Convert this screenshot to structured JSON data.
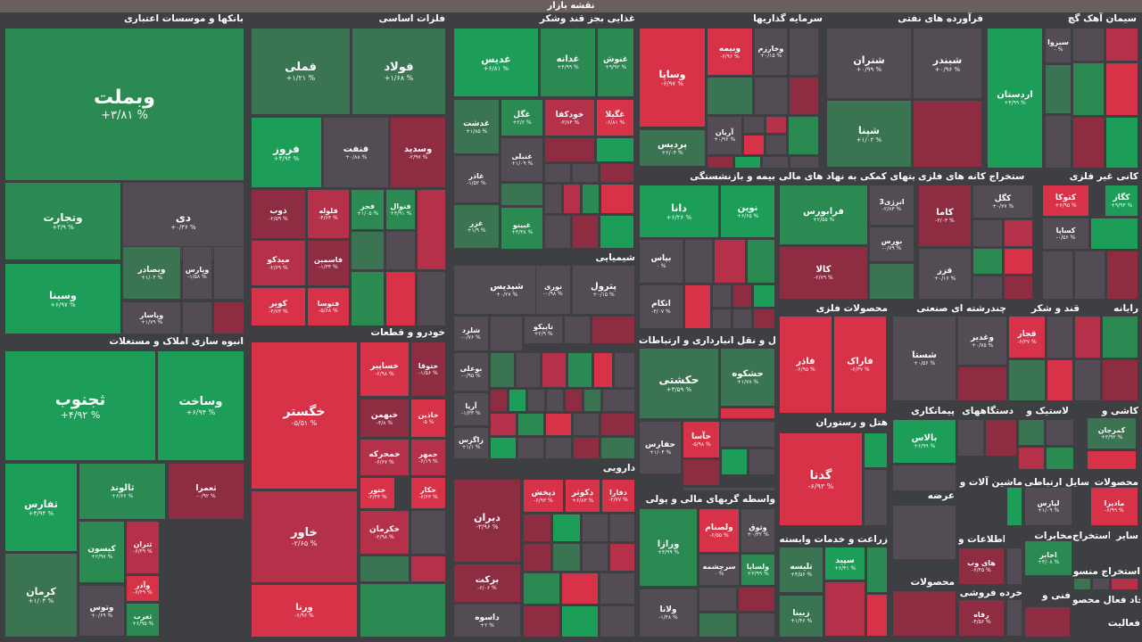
{
  "title": "نقشه بازار",
  "sections": {
    "banks": "بانکها و موسسات اعتباری",
    "metals": "فلزات اساسی",
    "food": "غذایی بجز قند وشکر",
    "invest": "سرمایه گذاریها",
    "oil": "فرآورده های نفتی",
    "cement": "سیمان آهک گچ",
    "chem": "شیمیایی",
    "insurance": "بیمه و بازنشستگی",
    "holding": "فعالیتهای کمکی به نهاد های مالی",
    "mining": "استخراج کانه های فلزی",
    "nonmetal": "کانی غیر فلزی",
    "realestate": "انبوه سازی املاک و مستغلات",
    "auto": "خودرو و قطعات",
    "transport": "حمل و نقل انبارداری و ارتباطات",
    "metalprod": "محصولات فلزی",
    "multi": "چندرشته ای صنعتی",
    "sugar": "قند و شکر",
    "computer": "رایانه",
    "hotel": "هتل و رستوران",
    "contractors": "پیمانکاری",
    "devices": "دستگاههای",
    "rubber": "لاستیک و",
    "tiles": "کاشی و",
    "pharma": "دارویی",
    "finance": "واسطه گریهای مالی و پولی",
    "agri": "زراعت و خدمات وابسته",
    "supply": "عرضه",
    "machinery": "ماشین آلات و",
    "telecom": "وسایل ارتباطی",
    "products": "محصولات",
    "info": "اطلاعات و",
    "communications": "مخابرات",
    "extraction": "استخراج",
    "other": "سایر",
    "retail": "خرده فروشی",
    "technical": "فنی و",
    "prods2": "محصولات",
    "active": "فعال",
    "extract2": "استخراج منسو",
    "active2": "جاد فعال محصو",
    "active3": "فعالیت",
    "extract3": "استخرا"
  },
  "tiles": {
    "vbmellat": {
      "n": "وبملت",
      "v": "+۳/۸۱ %"
    },
    "vtejarat": {
      "n": "وتجارت",
      "v": "+۳/۹ %"
    },
    "di": {
      "n": "دی",
      "v": "+۰/۳۶ %"
    },
    "vsina": {
      "n": "وسینا",
      "v": "+۶/۹۷ %"
    },
    "vbsader": {
      "n": "وبصادر",
      "v": "+۱/۰۴ %"
    },
    "vpars": {
      "n": "وپارس",
      "v": "-۱/۵۸ %"
    },
    "vpasar": {
      "n": "وپاسار",
      "v": "+۱/۷۹ %"
    },
    "fameli": {
      "n": "فملی",
      "v": "+۱/۲۱ %"
    },
    "foolad": {
      "n": "فولاد",
      "v": "+۱/۶۸ %"
    },
    "firooz": {
      "n": "فروز",
      "v": "+۴/۹۴ %"
    },
    "fnaft": {
      "n": "فنفت",
      "v": "+۰/۸۸ %"
    },
    "vsadid": {
      "n": "وسدید",
      "v": "-۲/۹۷ %"
    },
    "zob": {
      "n": "ذوب",
      "v": "-۲/۵۹ %"
    },
    "foleh": {
      "n": "فلوله",
      "v": "-۴/۶۴ %"
    },
    "fajr": {
      "n": "فجر",
      "v": "+۱/۰۵ %"
    },
    "fnoval": {
      "n": "فنوال",
      "v": "+۳/۹۱ %"
    },
    "meydko": {
      "n": "میدکو",
      "v": "-۲/۶۹ %"
    },
    "fasmin": {
      "n": "فاسمین",
      "v": "-۱/۳۴ %"
    },
    "kavir": {
      "n": "کویر",
      "v": "-۴/۷۳ %"
    },
    "fetoosa": {
      "n": "فتوسا",
      "v": "-۵/۶۸ %"
    },
    "ghadis": {
      "n": "غدیس",
      "v": "+۶/۸۱ %"
    },
    "ghadaneh": {
      "n": "غدانه",
      "v": "+۴/۹۹ %"
    },
    "ghnoosh": {
      "n": "غنوش",
      "v": "+۹/۹۲ %"
    },
    "ghdasht": {
      "n": "غدشت",
      "v": "+۱/۸۵ %"
    },
    "ghgol": {
      "n": "غگل",
      "v": "+۲/۶ %"
    },
    "khodkafa": {
      "n": "خودکفا",
      "v": "-۳/۸۴ %"
    },
    "ghgila": {
      "n": "غگیلا",
      "v": "-۶/۸۱ %"
    },
    "ghnabi": {
      "n": "غنبلی",
      "v": "+۱/۰۹ %"
    },
    "ghazar": {
      "n": "غاذر",
      "v": "-۱/۵۲ %"
    },
    "ghazr": {
      "n": "غزر",
      "v": "+۱/۹ %"
    },
    "gheyno": {
      "n": "غبینو",
      "v": "+۴/۳۸ %"
    },
    "vsapa": {
      "n": "وساپا",
      "v": "-۶/۹۷ %"
    },
    "vbimeh": {
      "n": "وبیمه",
      "v": "-۶/۹۶ %"
    },
    "vkharazm": {
      "n": "وخارزم",
      "v": "+۰/۱۵ %"
    },
    "aryan": {
      "n": "آریان",
      "v": "+۰/۹۶ %"
    },
    "pardis": {
      "n": "پردیس",
      "v": "+۲/۰۴ %"
    },
    "shatran": {
      "n": "شتران",
      "v": "+۰/۹۹ %"
    },
    "shbandar": {
      "n": "شبندر",
      "v": "+۰/۹۶ %"
    },
    "shpena": {
      "n": "شپنا",
      "v": "+۱/۰۲ %"
    },
    "sabzva": {
      "n": "سبزوا",
      "v": "۰ %"
    },
    "ardestan": {
      "n": "اردستان",
      "v": "+۴/۹۹ %"
    },
    "shepdis": {
      "n": "شپدیس",
      "v": "+۰/۲۷ %"
    },
    "noori": {
      "n": "نوری",
      "v": "-۰/۹۸ %"
    },
    "petrol": {
      "n": "پترول",
      "v": "+۰/۱۵ %"
    },
    "sharad": {
      "n": "شلرد",
      "v": "-۰/۷۶ %"
    },
    "tapiko": {
      "n": "تاپیکو",
      "v": "+۲/۹ %"
    },
    "booali": {
      "n": "بوعلی",
      "v": "-۰/۹۵ %"
    },
    "arya": {
      "n": "آریا",
      "v": "-۱/۳۳ %"
    },
    "zagros": {
      "n": "زاگرس",
      "v": "+۱/۱ %"
    },
    "dana": {
      "n": "دانا",
      "v": "+۶/۲۶ %"
    },
    "novin": {
      "n": "نوین",
      "v": "+۶/۶۵ %"
    },
    "bpas": {
      "n": "بپاس",
      "v": "۰ %"
    },
    "atkam": {
      "n": "اتکام",
      "v": "-۳/۰۷ %"
    },
    "farabourse": {
      "n": "فرابورس",
      "v": "+۲/۵۵ %"
    },
    "anerzhi": {
      "n": "انرژی3",
      "v": "-۲/۸۳ %"
    },
    "bourse": {
      "n": "بورس",
      "v": "-۰/۷۹ %"
    },
    "kala": {
      "n": "کالا",
      "v": "-۲/۷۹ %"
    },
    "kama": {
      "n": "کاما",
      "v": "-۳/۰۳ %"
    },
    "kagol": {
      "n": "کگل",
      "v": "+۰/۷۷ %"
    },
    "fazar": {
      "n": "فزر",
      "v": "+۰/۱۶ %"
    },
    "kgaz": {
      "n": "کگاز",
      "v": "+۹/۹۳ %"
    },
    "ktoka": {
      "n": "کتوکا",
      "v": "+۶/۹۵ %"
    },
    "kspa": {
      "n": "کساپا",
      "v": "-۰/۵۶ %"
    },
    "tjonoob": {
      "n": "ثجنوب",
      "v": "+۴/۹۲ %"
    },
    "vsakht": {
      "n": "وساخت",
      "v": "+۶/۹۴ %"
    },
    "tfars": {
      "n": "ثفارس",
      "v": "+۴/۹۴ %"
    },
    "taland": {
      "n": "ثالوند",
      "v": "+۶/۶۶ %"
    },
    "temran": {
      "n": "ثعمرا",
      "v": "-۰/۹۲ %"
    },
    "kisun": {
      "n": "کیسون",
      "v": "+۲/۹۷ %"
    },
    "tetran": {
      "n": "ثتران",
      "v": "-۶/۴۹ %"
    },
    "vaazar": {
      "n": "وآذر",
      "v": "-۶/۴۹ %"
    },
    "kerman": {
      "n": "کرمان",
      "v": "+۱/۰۴ %"
    },
    "vtoos": {
      "n": "وتوس",
      "v": "+۰/۶۹ %"
    },
    "tgharb": {
      "n": "ثغرب",
      "v": "+۶/۹۵ %"
    },
    "khgostar": {
      "n": "خگستر",
      "v": "-۵/۵۱ %"
    },
    "khavar": {
      "n": "خاور",
      "v": "-۲/۶۵ %"
    },
    "vorna": {
      "n": "ورنا",
      "v": "-۶/۹۶ %"
    },
    "khsapir": {
      "n": "خساپیر",
      "v": "-۶/۹۸ %"
    },
    "khtoghaz": {
      "n": "ختوقا",
      "v": "-۱/۵۶ %"
    },
    "khbahman": {
      "n": "خبهمن",
      "v": "-۳/۸ %"
    },
    "khdayan": {
      "n": "خاذین",
      "v": "-۵ %"
    },
    "khmehreh": {
      "n": "خمحرکه",
      "v": "-۶/۶۷ %"
    },
    "khmohr": {
      "n": "خمهر",
      "v": "-۶/۱۹ %"
    },
    "khtoor": {
      "n": "ختور",
      "v": "-۲/۴۴ %"
    },
    "khkar": {
      "n": "خکار",
      "v": "-۶/۶۳ %"
    },
    "khkarman": {
      "n": "خکرمان",
      "v": "-۲/۹۸ %"
    },
    "hkeshti": {
      "n": "حکشتی",
      "v": "+۳/۵۹ %"
    },
    "hshkooh": {
      "n": "حشکوه",
      "v": "+۱/۷۸ %"
    },
    "hafaresan": {
      "n": "حفارس",
      "v": "+۱/۰۴ %"
    },
    "hasa": {
      "n": "حآسا",
      "v": "-۵/۹۸ %"
    },
    "fajr2": {
      "n": "فاذر",
      "v": "-۶/۹۵ %"
    },
    "faraak": {
      "n": "فاراک",
      "v": "-۶/۳۷ %"
    },
    "shesta": {
      "n": "شستا",
      "v": "+۰/۵۶ %"
    },
    "vghadir": {
      "n": "وغدیر",
      "v": "+۰/۷۵ %"
    },
    "ghajar": {
      "n": "قجار",
      "v": "-۶/۳۷ %"
    },
    "gedna": {
      "n": "گدنا",
      "v": "-۶/۹۳ %"
    },
    "balas": {
      "n": "بالاس",
      "v": "+۶/۹۹ %"
    },
    "kermipan": {
      "n": "کمرجان",
      "v": "+۳/۹۲ %"
    },
    "dirad": {
      "n": "دیران",
      "v": "-۳/۹۶ %"
    },
    "barakat": {
      "n": "برکت",
      "v": "-۶/۰۶ %"
    },
    "dasveh": {
      "n": "داسوه",
      "v": "+۲ %"
    },
    "dpakhsh": {
      "n": "دپخش",
      "v": "-۶/۹۳ %"
    },
    "dkoter": {
      "n": "دکوثر",
      "v": "+۶/۸۳ %"
    },
    "dfara": {
      "n": "دفارا",
      "v": "-۲/۷۷ %"
    },
    "vraz": {
      "n": "ورازا",
      "v": "+۳/۹۹ %"
    },
    "vlasampan": {
      "n": "ولصنام",
      "v": "-۶/۵۵ %"
    },
    "vtooq": {
      "n": "وثوق",
      "v": "+۰/۳۲ %"
    },
    "vsarcheshmeh": {
      "n": "سرچشمه",
      "v": "۰ %"
    },
    "vlasapa": {
      "n": "ولساپا",
      "v": "+۳/۹۹ %"
    },
    "vlana": {
      "n": "ولانا",
      "v": "-۱/۴۸ %"
    },
    "tlisen": {
      "n": "تلیسه",
      "v": "+۴/۵۶ %"
    },
    "simarg": {
      "n": "سیمرغ",
      "v": "+۳/۵۸ %"
    },
    "sipad": {
      "n": "سپید",
      "v": "+۶/۴۱ %"
    },
    "zibna": {
      "n": "زبینا",
      "v": "+۱/۴۶ %"
    },
    "hayweb": {
      "n": "های وب",
      "v": "-۶/۴۵ %"
    },
    "lapars": {
      "n": "لپارس",
      "v": "+۱/۰۹ %"
    },
    "madira": {
      "n": "مادیرا",
      "v": "-۶/۹۹ %"
    },
    "akhaber": {
      "n": "اخابر",
      "v": "+۳/۰۸ %"
    },
    "rafah": {
      "n": "رفاه",
      "v": "-۴/۵۶ %"
    }
  }
}
